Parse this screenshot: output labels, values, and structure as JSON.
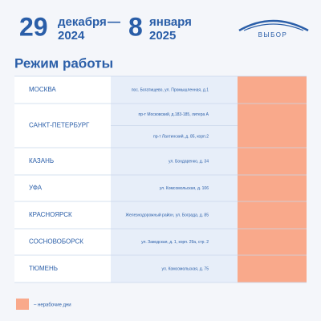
{
  "header": {
    "day1": "29",
    "month1": "декабря",
    "year1": "2024",
    "dash": "—",
    "day2": "8",
    "month2": "января",
    "year2": "2025",
    "logo": "ВЫБОР"
  },
  "title": "Режим работы",
  "table": {
    "rows": [
      {
        "city": "МОСКВА",
        "addresses": [
          "пос. Богатищево, ул. Промышленная, д.1"
        ]
      },
      {
        "city": "САНКТ-ПЕТЕРБУРГ",
        "addresses": [
          "пр-т Московский, д.183-185, литера А",
          "пр-т Лахтинский, д. 85, корп.2"
        ]
      },
      {
        "city": "КАЗАНЬ",
        "addresses": [
          "ул. Бондаренко,  д. 34"
        ]
      },
      {
        "city": "УФА",
        "addresses": [
          "ул. Комсомольская,  д. 106"
        ]
      },
      {
        "city": "КРАСНОЯРСК",
        "addresses": [
          "Железнодорожный район, ул. Бограда, д. 85"
        ]
      },
      {
        "city": "СОСНОВОБОРСК",
        "addresses": [
          "ул. Заводская, д. 1, корп. 29а, стр. 2"
        ]
      },
      {
        "city": "ТЮМЕНЬ",
        "addresses": [
          "ул. Комсомольская, д. 75"
        ]
      }
    ]
  },
  "legend": "– нерабочие дни"
}
